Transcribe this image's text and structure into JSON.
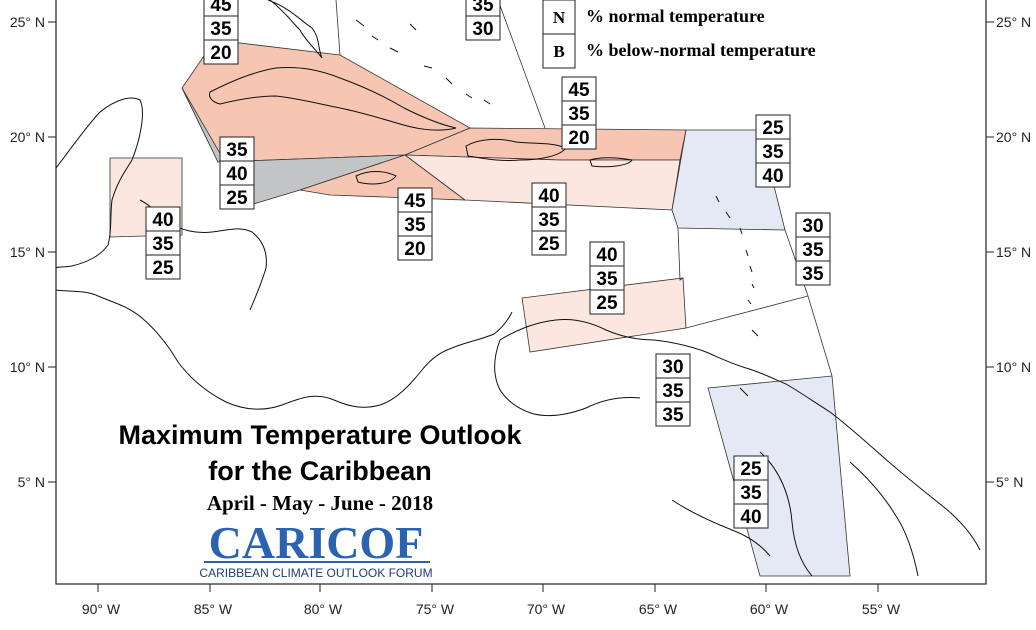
{
  "map": {
    "lat_labels": [
      "25° N",
      "20° N",
      "15° N",
      "10° N",
      "5° N"
    ],
    "lon_labels": [
      "90° W",
      "85° W",
      "80° W",
      "75° W",
      "70° W",
      "65° W",
      "60° W",
      "55° W"
    ]
  },
  "title": {
    "line1": "Maximum Temperature Outlook",
    "line2": "for the Caribbean",
    "period": "April - May - June - 2018"
  },
  "legend": {
    "items": [
      {
        "key": "N",
        "text": "% normal temperature"
      },
      {
        "key": "B",
        "text": "% below-normal temperature"
      }
    ]
  },
  "logo": {
    "name": "CARICOF",
    "subtitle": "CARIBBEAN CLIMATE OUTLOOK FORUM"
  },
  "colors": {
    "above": "#f6c6b3",
    "above_light": "#fbe7df",
    "normal": "#c4c5c7",
    "below": "#e5e9f5",
    "logo_blue": "#2a63b0"
  },
  "forecasts": [
    {
      "values": [
        "45",
        "35",
        "20"
      ],
      "category": "above"
    },
    {
      "values": [
        "35",
        "30"
      ],
      "category": "above"
    },
    {
      "values": [
        "45",
        "35",
        "20"
      ],
      "category": "above"
    },
    {
      "values": [
        "25",
        "35",
        "40"
      ],
      "category": "below"
    },
    {
      "values": [
        "35",
        "40",
        "25"
      ],
      "category": "normal"
    },
    {
      "values": [
        "40",
        "35",
        "25"
      ],
      "category": "above-light"
    },
    {
      "values": [
        "45",
        "35",
        "20"
      ],
      "category": "above"
    },
    {
      "values": [
        "40",
        "35",
        "25"
      ],
      "category": "above-light"
    },
    {
      "values": [
        "30",
        "35",
        "35"
      ],
      "category": "neutral"
    },
    {
      "values": [
        "40",
        "35",
        "25"
      ],
      "category": "above-light"
    },
    {
      "values": [
        "30",
        "35",
        "35"
      ],
      "category": "neutral"
    },
    {
      "values": [
        "25",
        "35",
        "40"
      ],
      "category": "below"
    }
  ]
}
